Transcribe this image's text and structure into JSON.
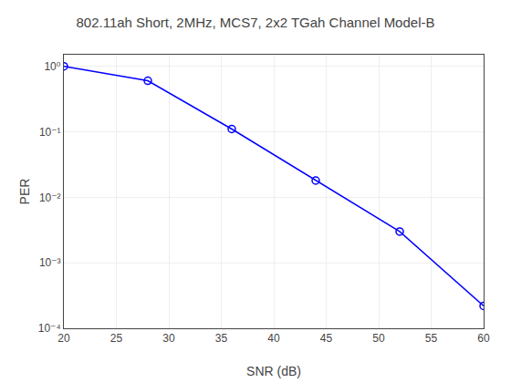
{
  "chart_data": {
    "type": "line",
    "title": "802.11ah Short, 2MHz, MCS7, 2x2 TGah Channel Model-B",
    "xlabel": "SNR (dB)",
    "ylabel": "PER",
    "x": [
      20,
      28,
      36,
      44,
      52,
      60
    ],
    "values": [
      1.0,
      0.6,
      0.11,
      0.018,
      0.003,
      0.00022
    ],
    "color": "#0000FF",
    "marker": "open_circle",
    "line_style": "solid",
    "log": "y",
    "grid": true,
    "xlim": [
      20,
      60
    ],
    "xticks": [
      20,
      25,
      30,
      35,
      40,
      45,
      50,
      55,
      60
    ],
    "ylim": [
      0.0001,
      1.5
    ],
    "yticks": [
      {
        "value": 0.0001,
        "label": "10⁻⁴"
      },
      {
        "value": 0.001,
        "label": "10⁻³"
      },
      {
        "value": 0.01,
        "label": "10⁻²"
      },
      {
        "value": 0.1,
        "label": "10⁻¹"
      },
      {
        "value": 1,
        "label": "10⁰"
      }
    ]
  }
}
